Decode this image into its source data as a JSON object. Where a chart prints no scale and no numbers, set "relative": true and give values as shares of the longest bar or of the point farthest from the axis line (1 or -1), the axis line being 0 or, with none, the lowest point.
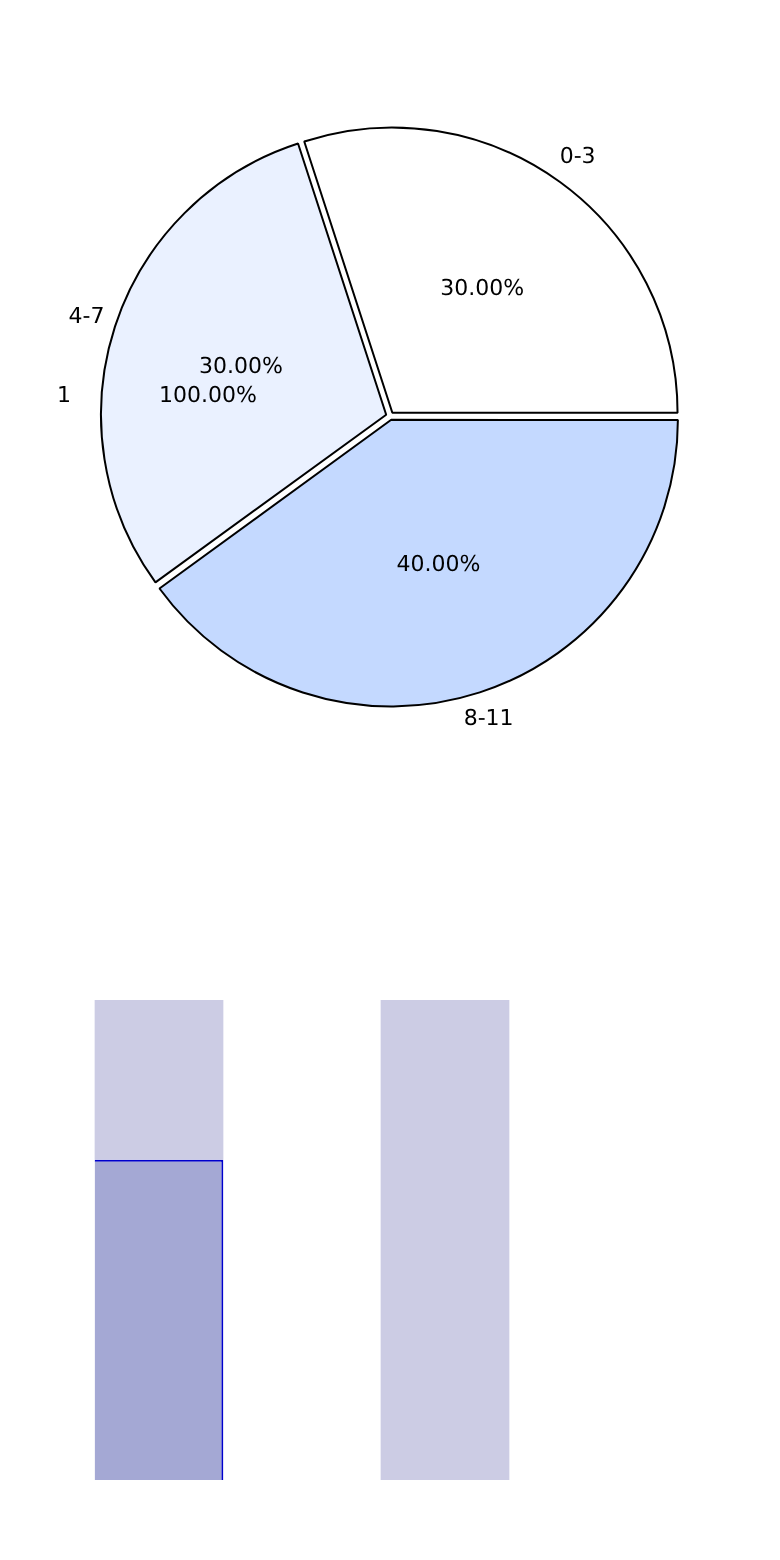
{
  "chart_data": [
    {
      "type": "pie",
      "categories": [
        "0-3",
        "4-7",
        "8-11"
      ],
      "values": [
        30,
        30,
        40
      ],
      "colors": [
        "#ffffff",
        "#eaf1ff",
        "#c4d9ff"
      ],
      "value_labels": [
        "30.00%",
        "30.00%",
        "40.00%"
      ],
      "annotations": [
        "1",
        "100.00%"
      ],
      "legend": false
    },
    {
      "type": "bar",
      "relative": true,
      "stacked": true,
      "categories": [
        null,
        null
      ],
      "legend": false,
      "series": [
        {
          "color": "#a4a8d4",
          "values": [
            0.667,
            null
          ]
        },
        {
          "color": "#cccce4",
          "values": [
            0.333,
            1
          ]
        }
      ]
    }
  ]
}
